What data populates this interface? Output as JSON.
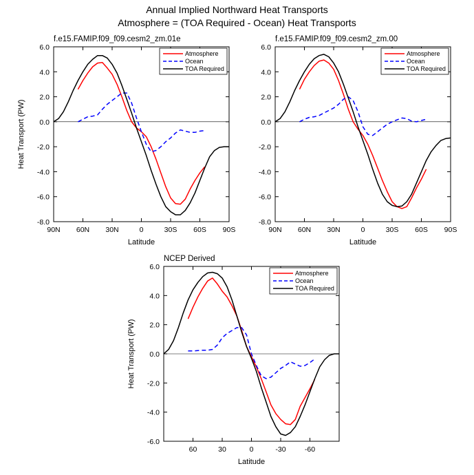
{
  "figure": {
    "title_line1": "Annual Implied Northward Heat Transports",
    "title_line2": "Atmosphere = (TOA Required - Ocean) Heat Transports"
  },
  "colors": {
    "atmosphere": "#ff0000",
    "ocean": "#0000ff",
    "toa_required": "#000000",
    "zero_line": "#000000"
  },
  "chart_data": [
    {
      "type": "line",
      "title": "f.e15.FAMIP.f09_f09.cesm2_zm.01e",
      "xlabel": "Latitude",
      "ylabel": "Heat Transport (PW)",
      "xlim": [
        90,
        -90
      ],
      "ylim": [
        -8,
        6
      ],
      "x_ticks": [
        90,
        60,
        30,
        0,
        -30,
        -60,
        -90
      ],
      "x_tick_labels": [
        "90N",
        "60N",
        "30N",
        "0",
        "30S",
        "60S",
        "90S"
      ],
      "y_ticks": [
        -8,
        -6,
        -4,
        -2,
        0,
        2,
        4,
        6
      ],
      "y_tick_labels": [
        "-8.0",
        "-6.0",
        "-4.0",
        "-2.0",
        "0.0",
        "2.0",
        "4.0",
        "6.0"
      ],
      "zero_line": true,
      "legend_position": "top-right",
      "series": [
        {
          "name": "Atmosphere",
          "color": "#ff0000",
          "dash": "solid",
          "x": [
            65,
            60,
            55,
            50,
            45,
            40,
            35,
            30,
            25,
            20,
            15,
            10,
            5,
            0,
            -5,
            -10,
            -15,
            -20,
            -25,
            -30,
            -35,
            -40,
            -45,
            -50,
            -55,
            -60,
            -65
          ],
          "y": [
            2.6,
            3.3,
            3.9,
            4.4,
            4.7,
            4.75,
            4.3,
            3.8,
            3.0,
            2.0,
            0.9,
            0.0,
            -0.5,
            -0.8,
            -1.2,
            -2.0,
            -3.0,
            -4.1,
            -5.2,
            -6.1,
            -6.55,
            -6.6,
            -6.2,
            -5.4,
            -4.7,
            -4.1,
            -3.6
          ]
        },
        {
          "name": "Ocean",
          "color": "#0000ff",
          "dash": "dashed",
          "x": [
            65,
            60,
            55,
            50,
            45,
            40,
            35,
            30,
            25,
            20,
            15,
            10,
            5,
            0,
            -5,
            -10,
            -15,
            -20,
            -25,
            -30,
            -35,
            -40,
            -45,
            -50,
            -55,
            -60,
            -65
          ],
          "y": [
            0.0,
            0.2,
            0.4,
            0.45,
            0.55,
            1.0,
            1.4,
            1.7,
            2.0,
            2.3,
            2.3,
            1.5,
            0.3,
            -0.8,
            -1.8,
            -2.4,
            -2.3,
            -2.0,
            -1.6,
            -1.3,
            -0.9,
            -0.65,
            -0.75,
            -0.85,
            -0.85,
            -0.75,
            -0.7
          ]
        },
        {
          "name": "TOA Required",
          "color": "#000000",
          "dash": "solid",
          "x": [
            90,
            85,
            80,
            75,
            70,
            65,
            60,
            55,
            50,
            45,
            40,
            35,
            30,
            25,
            20,
            15,
            10,
            5,
            0,
            -5,
            -10,
            -15,
            -20,
            -25,
            -30,
            -35,
            -40,
            -45,
            -50,
            -55,
            -60,
            -65,
            -70,
            -75,
            -80,
            -85,
            -90
          ],
          "y": [
            0.0,
            0.25,
            0.8,
            1.6,
            2.5,
            3.3,
            4.0,
            4.6,
            5.0,
            5.3,
            5.3,
            5.1,
            4.6,
            3.9,
            2.9,
            1.8,
            0.7,
            -0.5,
            -1.6,
            -2.7,
            -3.9,
            -5.0,
            -6.0,
            -6.8,
            -7.2,
            -7.45,
            -7.45,
            -7.1,
            -6.5,
            -5.7,
            -4.7,
            -3.7,
            -2.8,
            -2.3,
            -2.05,
            -2.0,
            -2.0
          ]
        }
      ]
    },
    {
      "type": "line",
      "title": "f.e15.FAMIP.f09_f09.cesm2_zm.00",
      "xlabel": "Latitude",
      "ylabel": "",
      "xlim": [
        90,
        -90
      ],
      "ylim": [
        -8,
        6
      ],
      "x_ticks": [
        90,
        60,
        30,
        0,
        -30,
        -60,
        -90
      ],
      "x_tick_labels": [
        "90N",
        "60N",
        "30N",
        "0",
        "30S",
        "60S",
        "90S"
      ],
      "y_ticks": [
        -8,
        -6,
        -4,
        -2,
        0,
        2,
        4,
        6
      ],
      "y_tick_labels": [
        "-8.0",
        "-6.0",
        "-4.0",
        "-2.0",
        "0.0",
        "2.0",
        "4.0",
        "6.0"
      ],
      "zero_line": true,
      "legend_position": "top-right",
      "series": [
        {
          "name": "Atmosphere",
          "color": "#ff0000",
          "dash": "solid",
          "x": [
            65,
            60,
            55,
            50,
            45,
            40,
            35,
            30,
            25,
            20,
            15,
            10,
            5,
            0,
            -5,
            -10,
            -15,
            -20,
            -25,
            -30,
            -35,
            -40,
            -45,
            -50,
            -55,
            -60,
            -65
          ],
          "y": [
            2.6,
            3.4,
            4.0,
            4.5,
            4.85,
            4.95,
            4.7,
            4.2,
            3.3,
            2.2,
            1.0,
            0.0,
            -0.6,
            -1.1,
            -1.8,
            -2.7,
            -3.7,
            -4.7,
            -5.6,
            -6.4,
            -6.8,
            -6.95,
            -6.8,
            -6.1,
            -5.3,
            -4.6,
            -3.8
          ]
        },
        {
          "name": "Ocean",
          "color": "#0000ff",
          "dash": "dashed",
          "x": [
            65,
            60,
            55,
            50,
            45,
            40,
            35,
            30,
            25,
            20,
            15,
            10,
            5,
            0,
            -5,
            -10,
            -15,
            -20,
            -25,
            -30,
            -35,
            -40,
            -45,
            -50,
            -55,
            -60,
            -65
          ],
          "y": [
            0.0,
            0.2,
            0.35,
            0.4,
            0.5,
            0.7,
            0.9,
            1.1,
            1.4,
            1.8,
            2.0,
            1.7,
            0.8,
            -0.4,
            -1.0,
            -1.1,
            -0.8,
            -0.5,
            -0.2,
            0.0,
            0.15,
            0.3,
            0.25,
            0.05,
            0.0,
            0.1,
            0.2
          ]
        },
        {
          "name": "TOA Required",
          "color": "#000000",
          "dash": "solid",
          "x": [
            90,
            85,
            80,
            75,
            70,
            65,
            60,
            55,
            50,
            45,
            40,
            35,
            30,
            25,
            20,
            15,
            10,
            5,
            0,
            -5,
            -10,
            -15,
            -20,
            -25,
            -30,
            -35,
            -40,
            -45,
            -50,
            -55,
            -60,
            -65,
            -70,
            -75,
            -80,
            -85,
            -90
          ],
          "y": [
            0.0,
            0.25,
            0.8,
            1.6,
            2.5,
            3.3,
            4.0,
            4.6,
            5.05,
            5.3,
            5.4,
            5.2,
            4.7,
            4.0,
            3.0,
            1.9,
            0.8,
            -0.4,
            -1.5,
            -2.6,
            -3.8,
            -4.9,
            -5.8,
            -6.4,
            -6.7,
            -6.8,
            -6.75,
            -6.4,
            -5.8,
            -4.9,
            -4.0,
            -3.1,
            -2.4,
            -1.9,
            -1.5,
            -1.35,
            -1.3
          ]
        }
      ]
    },
    {
      "type": "line",
      "title": "NCEP Derived",
      "xlabel": "Latitude",
      "ylabel": "Heat Transport (PW)",
      "xlim": [
        90,
        -90
      ],
      "ylim": [
        -6,
        6
      ],
      "x_ticks": [
        60,
        30,
        0,
        -30,
        -60
      ],
      "x_tick_labels": [
        "60",
        "30",
        "0",
        "-30",
        "-60"
      ],
      "y_ticks": [
        -6,
        -4,
        -2,
        0,
        2,
        4,
        6
      ],
      "y_tick_labels": [
        "-6.0",
        "-4.0",
        "-2.0",
        "0.0",
        "2.0",
        "4.0",
        "6.0"
      ],
      "zero_line": true,
      "legend_position": "top-right",
      "series": [
        {
          "name": "Atmosphere",
          "color": "#ff0000",
          "dash": "solid",
          "x": [
            65,
            60,
            55,
            50,
            45,
            40,
            35,
            30,
            25,
            20,
            15,
            10,
            5,
            0,
            -5,
            -10,
            -15,
            -20,
            -25,
            -30,
            -35,
            -40,
            -45,
            -50,
            -55,
            -60,
            -65
          ],
          "y": [
            2.4,
            3.2,
            3.9,
            4.5,
            5.0,
            5.2,
            4.8,
            4.3,
            3.9,
            3.3,
            2.6,
            1.6,
            0.5,
            -0.2,
            -0.9,
            -1.7,
            -2.6,
            -3.5,
            -4.1,
            -4.5,
            -4.8,
            -4.85,
            -4.5,
            -3.6,
            -3.0,
            -2.4,
            -1.75
          ]
        },
        {
          "name": "Ocean",
          "color": "#0000ff",
          "dash": "dashed",
          "x": [
            65,
            60,
            55,
            50,
            45,
            40,
            35,
            30,
            25,
            20,
            15,
            10,
            5,
            0,
            -5,
            -10,
            -15,
            -20,
            -25,
            -30,
            -35,
            -40,
            -45,
            -50,
            -55,
            -60,
            -65
          ],
          "y": [
            0.2,
            0.2,
            0.22,
            0.25,
            0.25,
            0.3,
            0.6,
            1.1,
            1.4,
            1.6,
            1.8,
            1.8,
            1.3,
            0.0,
            -0.8,
            -1.5,
            -1.7,
            -1.6,
            -1.3,
            -1.0,
            -0.8,
            -0.55,
            -0.7,
            -0.85,
            -0.8,
            -0.6,
            -0.35
          ]
        },
        {
          "name": "TOA Required",
          "color": "#000000",
          "dash": "solid",
          "x": [
            90,
            85,
            80,
            75,
            70,
            65,
            60,
            55,
            50,
            45,
            40,
            35,
            30,
            25,
            20,
            15,
            10,
            5,
            0,
            -5,
            -10,
            -15,
            -20,
            -25,
            -30,
            -35,
            -40,
            -45,
            -50,
            -55,
            -60,
            -65,
            -70,
            -75,
            -80,
            -85,
            -90
          ],
          "y": [
            0.0,
            0.3,
            0.9,
            1.8,
            2.8,
            3.7,
            4.4,
            4.9,
            5.3,
            5.55,
            5.6,
            5.5,
            5.2,
            4.6,
            3.7,
            2.6,
            1.5,
            0.5,
            -0.3,
            -1.2,
            -2.3,
            -3.3,
            -4.3,
            -5.0,
            -5.5,
            -5.6,
            -5.4,
            -5.0,
            -4.3,
            -3.5,
            -2.6,
            -1.7,
            -0.9,
            -0.4,
            -0.1,
            0.0,
            0.0
          ]
        }
      ]
    }
  ]
}
